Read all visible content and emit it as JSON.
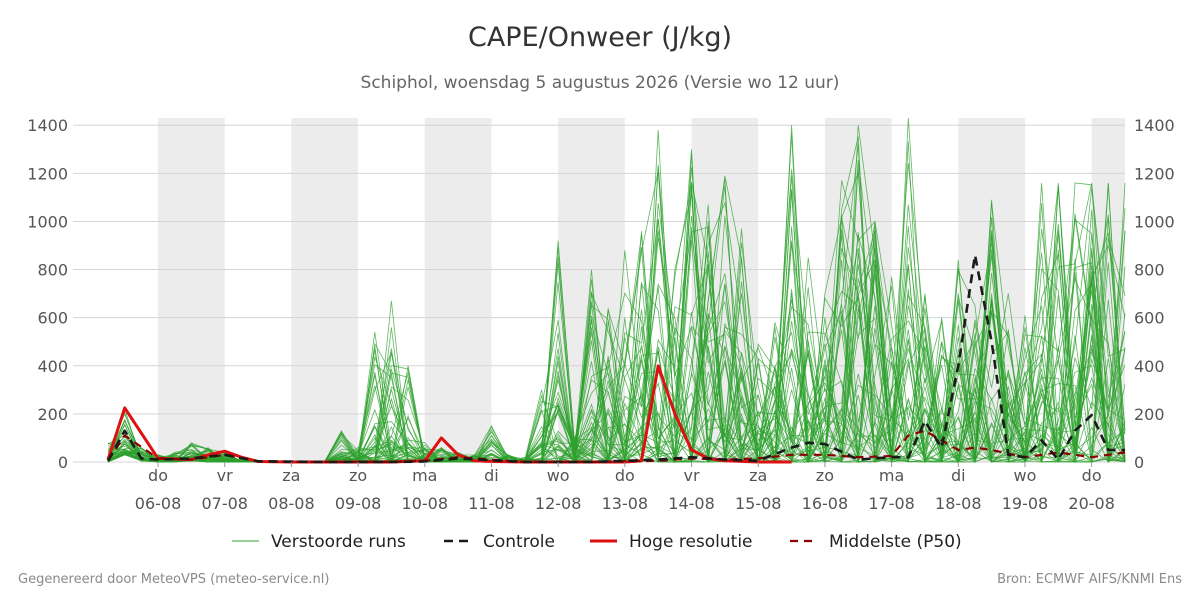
{
  "header": {
    "title": "CAPE/Onweer (J/kg)",
    "subtitle": "Schiphol, woensdag  5 augustus 2026 (Versie wo 12 uur)"
  },
  "footer": {
    "generated_by": "Gegenereerd door MeteoVPS (meteo-service.nl)",
    "source": "Bron: ECMWF AIFS/KNMI Ens"
  },
  "colors": {
    "ensemble": "#2ca02c",
    "control": "#1a1a1a",
    "hires": "#dd1111",
    "median": "#8b0000",
    "weekend_band": "#ececec",
    "grid": "#d5d5d5"
  },
  "chart_data": {
    "type": "line",
    "title": "CAPE/Onweer (J/kg)",
    "subtitle": "Schiphol, woensdag  5 augustus 2026 (Versie wo 12 uur)",
    "x_unit": "days since 2026-08-05",
    "xlim": [
      -0.25,
      15.0
    ],
    "ylim": [
      0,
      1430
    ],
    "yticks": [
      0,
      200,
      400,
      600,
      800,
      1000,
      1200,
      1400
    ],
    "y_axis_both_sides": true,
    "grid": "horizontal",
    "legend_position": "bottom",
    "shaded_day_bands": [
      [
        0.5,
        1.5
      ],
      [
        2.5,
        3.5
      ],
      [
        4.5,
        5.5
      ],
      [
        6.5,
        7.5
      ],
      [
        8.5,
        9.5
      ],
      [
        10.5,
        11.5
      ],
      [
        12.5,
        13.5
      ],
      [
        14.5,
        15.0
      ]
    ],
    "xticks": [
      {
        "x": 0.5,
        "day": "do",
        "date": "06-08"
      },
      {
        "x": 1.5,
        "day": "vr",
        "date": "07-08"
      },
      {
        "x": 2.5,
        "day": "za",
        "date": "08-08"
      },
      {
        "x": 3.5,
        "day": "zo",
        "date": "09-08"
      },
      {
        "x": 4.5,
        "day": "ma",
        "date": "10-08"
      },
      {
        "x": 5.5,
        "day": "di",
        "date": "11-08"
      },
      {
        "x": 6.5,
        "day": "wo",
        "date": "12-08"
      },
      {
        "x": 7.5,
        "day": "do",
        "date": "13-08"
      },
      {
        "x": 8.5,
        "day": "vr",
        "date": "14-08"
      },
      {
        "x": 9.5,
        "day": "za",
        "date": "15-08"
      },
      {
        "x": 10.5,
        "day": "zo",
        "date": "16-08"
      },
      {
        "x": 11.5,
        "day": "ma",
        "date": "17-08"
      },
      {
        "x": 12.5,
        "day": "di",
        "date": "18-08"
      },
      {
        "x": 13.5,
        "day": "wo",
        "date": "19-08"
      },
      {
        "x": 14.5,
        "day": "do",
        "date": "20-08"
      }
    ],
    "legend": [
      {
        "key": "ensemble",
        "label": "Verstoorde runs",
        "style": "thin-solid"
      },
      {
        "key": "control",
        "label": "Controle",
        "style": "dashed"
      },
      {
        "key": "hires",
        "label": "Hoge resolutie",
        "style": "thick-solid"
      },
      {
        "key": "median",
        "label": "Middelste (P50)",
        "style": "dashed"
      }
    ],
    "series": [
      {
        "name": "Hoge resolutie",
        "key": "hires",
        "x": [
          -0.25,
          0.0,
          0.5,
          1.0,
          1.25,
          1.5,
          1.75,
          2.0,
          2.5,
          3.0,
          3.5,
          4.0,
          4.5,
          4.75,
          5.0,
          5.25,
          5.5,
          6.0,
          6.5,
          7.0,
          7.5,
          7.75,
          8.0,
          8.25,
          8.5,
          8.75,
          9.0,
          9.5,
          10.0
        ],
        "y": [
          10,
          225,
          15,
          10,
          30,
          45,
          20,
          2,
          0,
          0,
          0,
          0,
          5,
          100,
          30,
          5,
          2,
          0,
          0,
          0,
          0,
          5,
          400,
          200,
          50,
          15,
          5,
          0,
          0
        ]
      },
      {
        "name": "Controle",
        "key": "control",
        "x": [
          -0.25,
          0.0,
          0.25,
          0.5,
          1.0,
          1.5,
          2.0,
          3.0,
          4.0,
          4.5,
          5.0,
          6.0,
          7.0,
          8.0,
          8.5,
          9.0,
          9.5,
          10.0,
          10.25,
          10.5,
          11.0,
          11.5,
          11.75,
          12.0,
          12.25,
          12.5,
          12.75,
          13.0,
          13.25,
          13.5,
          13.75,
          14.0,
          14.25,
          14.5,
          14.75,
          15.0
        ],
        "y": [
          5,
          130,
          15,
          10,
          15,
          30,
          3,
          0,
          0,
          2,
          15,
          0,
          0,
          10,
          20,
          10,
          5,
          60,
          80,
          75,
          10,
          20,
          20,
          170,
          60,
          400,
          860,
          500,
          30,
          20,
          90,
          10,
          130,
          195,
          50,
          50
        ]
      },
      {
        "name": "Middelste (P50)",
        "key": "median",
        "x": [
          -0.25,
          0.0,
          0.5,
          1.0,
          1.5,
          2.0,
          3.0,
          4.0,
          4.5,
          5.0,
          6.0,
          7.0,
          8.0,
          8.5,
          9.0,
          9.5,
          10.0,
          10.5,
          11.0,
          11.5,
          11.75,
          12.0,
          12.5,
          12.75,
          13.0,
          13.5,
          14.0,
          14.5,
          15.0
        ],
        "y": [
          5,
          110,
          15,
          10,
          30,
          3,
          0,
          0,
          5,
          20,
          0,
          0,
          5,
          15,
          10,
          15,
          30,
          30,
          20,
          25,
          110,
          130,
          50,
          60,
          50,
          20,
          40,
          20,
          40
        ]
      }
    ],
    "ensemble": {
      "name": "Verstoorde runs",
      "members": 50,
      "x": [
        -0.25,
        0.0,
        0.25,
        0.5,
        0.75,
        1.0,
        1.25,
        1.5,
        1.75,
        2.0,
        2.25,
        2.5,
        2.75,
        3.0,
        3.25,
        3.5,
        3.75,
        4.0,
        4.25,
        4.5,
        4.75,
        5.0,
        5.25,
        5.5,
        5.75,
        6.0,
        6.25,
        6.5,
        6.75,
        7.0,
        7.25,
        7.5,
        7.75,
        8.0,
        8.25,
        8.5,
        8.75,
        9.0,
        9.25,
        9.5,
        9.75,
        10.0,
        10.25,
        10.5,
        10.75,
        11.0,
        11.25,
        11.5,
        11.75,
        12.0,
        12.25,
        12.5,
        12.75,
        13.0,
        13.25,
        13.5,
        13.75,
        14.0,
        14.25,
        14.5,
        14.75,
        15.0
      ],
      "envelope_max": [
        80,
        220,
        60,
        30,
        40,
        80,
        60,
        40,
        10,
        5,
        5,
        5,
        5,
        5,
        130,
        60,
        540,
        670,
        400,
        80,
        60,
        40,
        30,
        150,
        30,
        20,
        300,
        920,
        100,
        800,
        640,
        880,
        960,
        1380,
        800,
        1300,
        1070,
        1190,
        970,
        490,
        580,
        1400,
        850,
        700,
        1170,
        1400,
        1000,
        770,
        1430,
        700,
        600,
        840,
        650,
        1090,
        700,
        610,
        1160,
        1160,
        1160,
        1160,
        1160,
        1160
      ],
      "envelope_min": [
        0,
        30,
        5,
        0,
        0,
        5,
        0,
        0,
        0,
        0,
        0,
        0,
        0,
        0,
        0,
        0,
        0,
        0,
        0,
        0,
        0,
        0,
        0,
        0,
        0,
        0,
        0,
        0,
        0,
        0,
        0,
        0,
        0,
        0,
        0,
        0,
        0,
        0,
        0,
        0,
        0,
        0,
        0,
        0,
        0,
        0,
        0,
        0,
        0,
        0,
        0,
        0,
        0,
        0,
        0,
        0,
        0,
        0,
        0,
        0,
        0,
        0
      ]
    }
  }
}
